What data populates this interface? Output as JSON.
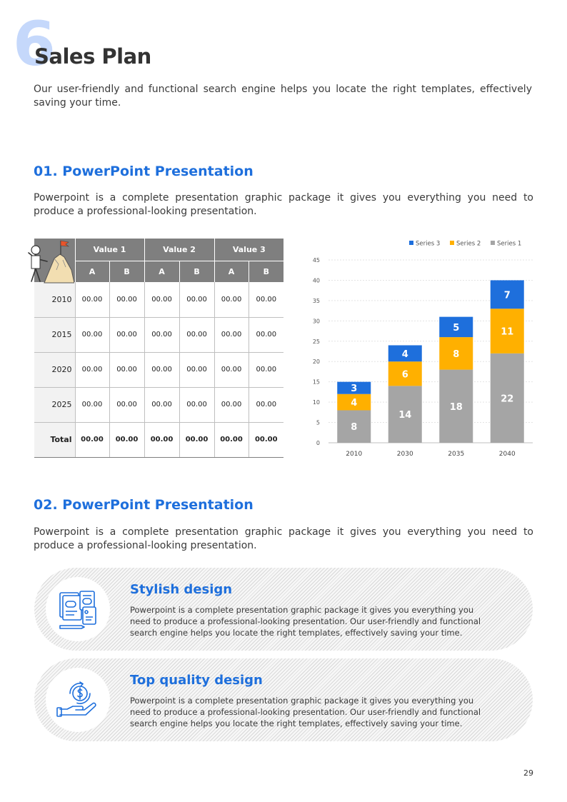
{
  "header": {
    "number": "6",
    "title": "Sales Plan"
  },
  "intro": "Our user-friendly and functional search engine helps you locate the right templates, effectively saving your time.",
  "section1": {
    "title": "01. PowerPoint Presentation",
    "body": "Powerpoint is a complete presentation graphic package it gives you everything you need to produce a professional-looking presentation."
  },
  "table": {
    "groups": [
      "Value 1",
      "Value 2",
      "Value 3"
    ],
    "subheaders": [
      "A",
      "B",
      "A",
      "B",
      "A",
      "B"
    ],
    "rows": [
      {
        "label": "2010",
        "cells": [
          "00.00",
          "00.00",
          "00.00",
          "00.00",
          "00.00",
          "00.00"
        ]
      },
      {
        "label": "2015",
        "cells": [
          "00.00",
          "00.00",
          "00.00",
          "00.00",
          "00.00",
          "00.00"
        ]
      },
      {
        "label": "2020",
        "cells": [
          "00.00",
          "00.00",
          "00.00",
          "00.00",
          "00.00",
          "00.00"
        ]
      },
      {
        "label": "2025",
        "cells": [
          "00.00",
          "00.00",
          "00.00",
          "00.00",
          "00.00",
          "00.00"
        ]
      },
      {
        "label": "Total",
        "cells": [
          "00.00",
          "00.00",
          "00.00",
          "00.00",
          "00.00",
          "00.00"
        ]
      }
    ]
  },
  "chart_data": {
    "type": "bar",
    "stacked": true,
    "categories": [
      "2010",
      "2030",
      "2035",
      "2040"
    ],
    "series": [
      {
        "name": "Series 1",
        "values": [
          8,
          14,
          18,
          22
        ],
        "color": "#a5a5a5"
      },
      {
        "name": "Series 2",
        "values": [
          4,
          6,
          8,
          11
        ],
        "color": "#ffb000"
      },
      {
        "name": "Series 3",
        "values": [
          3,
          4,
          5,
          7
        ],
        "color": "#1e6fdc"
      }
    ],
    "legend": [
      "Series 3",
      "Series 2",
      "Series 1"
    ],
    "yticks": [
      0,
      5,
      10,
      15,
      20,
      25,
      30,
      35,
      40,
      45
    ],
    "ylim": [
      0,
      45
    ],
    "legend_position": "top-right",
    "grid": true
  },
  "section2": {
    "title": "02. PowerPoint Presentation",
    "body": "Powerpoint is a complete presentation graphic package it gives you everything you need to produce a professional-looking presentation."
  },
  "cards": [
    {
      "title": "Stylish design",
      "lines": [
        "Powerpoint  is a complete presentation  graphic package it gives you everything  you",
        "need to produce  a professional-looking  presentation.  Our user-friendly  and functional",
        "search engine  helps you locate the right templates, effectively saving your time."
      ],
      "icon": "documents-icon"
    },
    {
      "title": "Top quality design",
      "lines": [
        "Powerpoint  is a complete presentation graphic package it gives you everything  you",
        "need to produce  a professional-looking  presentation.  Our user-friendly and functional",
        "search engine  helps you locate the right templates, effectively saving your time."
      ],
      "icon": "money-hand-icon"
    }
  ],
  "page_number": "29",
  "colors": {
    "accent": "#1e6fdc",
    "big_number": "#c5d8fb",
    "table_header": "#7f7f7f"
  }
}
